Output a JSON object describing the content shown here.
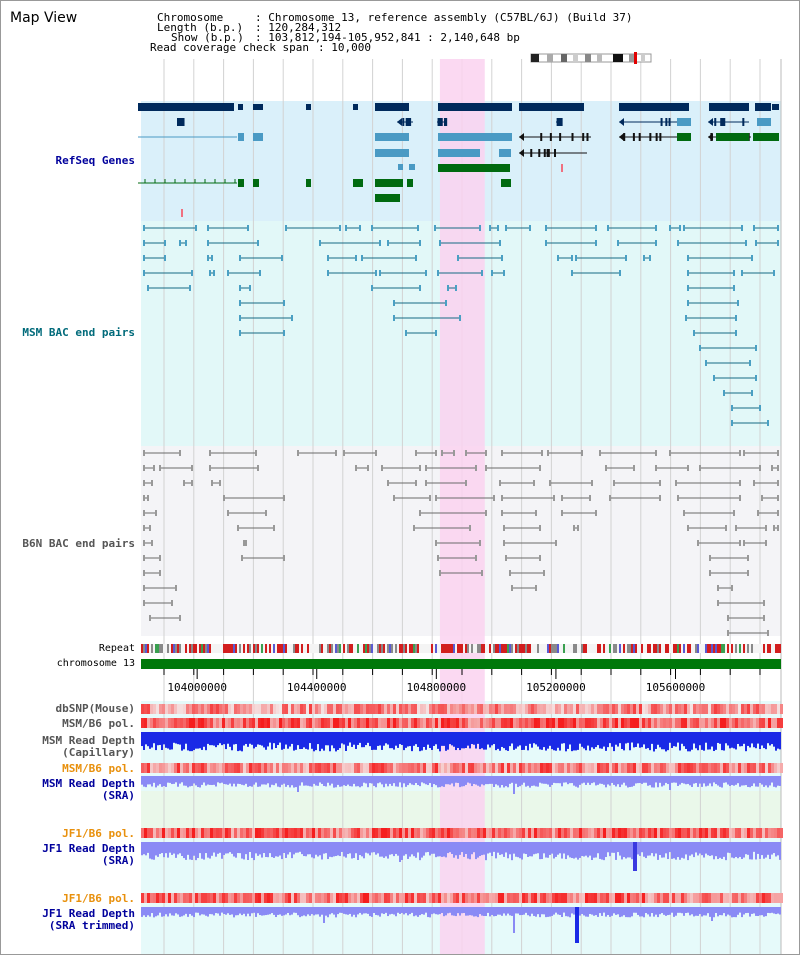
{
  "title": "Map View",
  "info": {
    "chromosome_label": "Chromosome",
    "chromosome_value": ": Chromosome 13, reference assembly (C57BL/6J) (Build 37)",
    "length_label": "Length (b.p.)",
    "length_value": ": 120,284,312",
    "show_label": "Show (b.p.)",
    "show_value": ": 103,812,194-105,952,841 : 2,140,648 bp",
    "coverage_label": "Read coverage check span",
    "coverage_value": ": 10,000"
  },
  "tracks": {
    "refseq": {
      "label": "RefSeq Genes",
      "color": "#00009c"
    },
    "msm_bac": {
      "label": "MSM BAC end pairs",
      "color": "#006a7a"
    },
    "b6n_bac": {
      "label": "B6N BAC end pairs",
      "color": "#555555"
    },
    "repeat": {
      "label": "Repeat"
    },
    "chromosome": {
      "label": "chromosome 13"
    },
    "dbsnp": {
      "label": "dbSNP(Mouse)",
      "color": "#555555"
    },
    "msm_pol": {
      "label": "MSM/B6 pol.",
      "color": "#555555"
    },
    "msm_depth_cap": {
      "label1": "MSM Read Depth",
      "label2": "(Capillary)",
      "color": "#555555"
    },
    "msm_pol2": {
      "label": "MSM/B6 pol.",
      "color": "#e8900c"
    },
    "msm_depth_sra": {
      "label1": "MSM Read Depth",
      "label2": "(SRA)",
      "color": "#00009c"
    },
    "jf1_pol": {
      "label": "JF1/B6 pol.",
      "color": "#e8900c"
    },
    "jf1_depth_sra": {
      "label1": "JF1 Read Depth",
      "label2": "(SRA)",
      "color": "#00009c"
    },
    "jf1_pol2": {
      "label": "JF1/B6 pol.",
      "color": "#e8900c"
    },
    "jf1_depth_trim": {
      "label1": "JF1 Read Depth",
      "label2": "(SRA trimmed)",
      "color": "#00009c"
    }
  },
  "axis": {
    "ticks": [
      "104000000",
      "104400000",
      "104800000",
      "105200000",
      "105600000"
    ],
    "tick_values": [
      104000000,
      104400000,
      104800000,
      105200000,
      105600000
    ],
    "start": 103812194,
    "end": 105952841,
    "highlight_start": 104812000,
    "highlight_end": 104962000
  },
  "colors": {
    "refseq_bg": "#daf0fa",
    "msm_bg": "#e2f8f8",
    "b6n_bg": "#f4f4f7",
    "highlight": "#fad2f0",
    "chromosome": "#00780a",
    "gene_dark": "#002a5c",
    "gene_light": "#4a9ac4",
    "gene_green": "#006a10",
    "depth_blue": "#1a2ae6",
    "depth_light": "#8a8af5",
    "pol_red": "#f03232"
  }
}
